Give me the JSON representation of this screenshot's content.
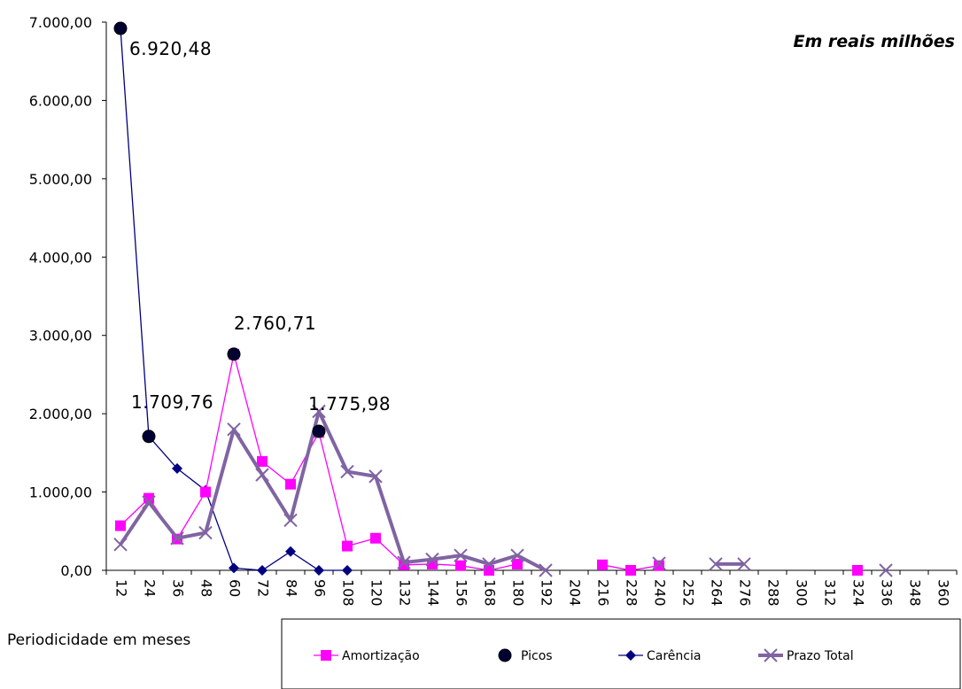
{
  "chart_data": {
    "type": "line",
    "unit_note": "Em reais milhões",
    "xlabel": "Periodicidade em meses",
    "ylabel": "",
    "ylim": [
      0,
      7000
    ],
    "y_ticks": [
      "0,00",
      "1.000,00",
      "2.000,00",
      "3.000,00",
      "4.000,00",
      "5.000,00",
      "6.000,00",
      "7.000,00"
    ],
    "categories": [
      "12",
      "24",
      "36",
      "48",
      "60",
      "72",
      "84",
      "96",
      "108",
      "120",
      "132",
      "144",
      "156",
      "168",
      "180",
      "192",
      "204",
      "216",
      "228",
      "240",
      "252",
      "264",
      "276",
      "288",
      "300",
      "312",
      "324",
      "336",
      "348",
      "360"
    ],
    "series": [
      {
        "name": "Amortização",
        "color": "#ff00ff",
        "marker": "square",
        "values": [
          570,
          920,
          400,
          1000,
          2760,
          1390,
          1100,
          1760,
          310,
          410,
          70,
          80,
          60,
          0,
          80,
          null,
          null,
          70,
          0,
          60,
          null,
          null,
          null,
          null,
          null,
          null,
          0,
          null,
          null,
          null
        ]
      },
      {
        "name": "Picos",
        "color": "#000033",
        "marker": "circle",
        "values": [
          6920.48,
          1709.76,
          null,
          null,
          2760.71,
          null,
          null,
          1775.98,
          null,
          null,
          null,
          null,
          null,
          null,
          null,
          null,
          null,
          null,
          null,
          null,
          null,
          null,
          null,
          null,
          null,
          null,
          null,
          null,
          null,
          null
        ]
      },
      {
        "name": "Carência",
        "color": "#000080",
        "marker": "diamond",
        "values": [
          6920,
          1710,
          1300,
          1020,
          30,
          0,
          240,
          0,
          0,
          null,
          null,
          null,
          null,
          null,
          null,
          null,
          null,
          null,
          null,
          null,
          null,
          null,
          null,
          null,
          null,
          null,
          null,
          null,
          null,
          null
        ]
      },
      {
        "name": "Prazo Total",
        "color": "#8064a2",
        "marker": "x",
        "values": [
          330,
          870,
          410,
          480,
          1800,
          1220,
          640,
          2030,
          1260,
          1200,
          100,
          140,
          190,
          80,
          190,
          0,
          null,
          null,
          null,
          90,
          null,
          80,
          80,
          null,
          null,
          null,
          null,
          0,
          null,
          null
        ]
      }
    ],
    "annotations": [
      {
        "text": "6.920,48",
        "x": "12",
        "y": 6920.48
      },
      {
        "text": "1.709,76",
        "x": "24",
        "y": 1709.76
      },
      {
        "text": "2.760,71",
        "x": "60",
        "y": 2760.71
      },
      {
        "text": "1.775,98",
        "x": "96",
        "y": 1775.98
      }
    ],
    "grid": false,
    "legend_position": "bottom-right"
  }
}
